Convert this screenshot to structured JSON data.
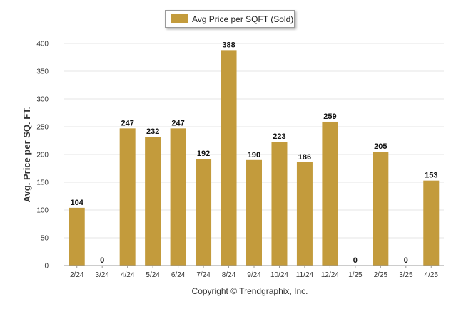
{
  "legend": {
    "label": "Avg Price per SQFT (Sold)"
  },
  "footer": {
    "text": "Copyright © Trendgraphix, Inc."
  },
  "colors": {
    "bar": "#c39b3c",
    "grid": "#e6e6e6",
    "axis": "#555555"
  },
  "chart_data": {
    "type": "bar",
    "categories": [
      "2/24",
      "3/24",
      "4/24",
      "5/24",
      "6/24",
      "7/24",
      "8/24",
      "9/24",
      "10/24",
      "11/24",
      "12/24",
      "1/25",
      "2/25",
      "3/25",
      "4/25"
    ],
    "series": [
      {
        "name": "Avg Price per SQFT (Sold)",
        "values": [
          104,
          0,
          247,
          232,
          247,
          192,
          388,
          190,
          223,
          186,
          259,
          0,
          205,
          0,
          153
        ]
      }
    ],
    "ylabel": "Avg. Price per SQ. FT.",
    "xlabel": "",
    "ylim": [
      0,
      400
    ],
    "yticks": [
      0,
      50,
      100,
      150,
      200,
      250,
      300,
      350,
      400
    ],
    "grid": true,
    "legend_position": "top-center"
  }
}
